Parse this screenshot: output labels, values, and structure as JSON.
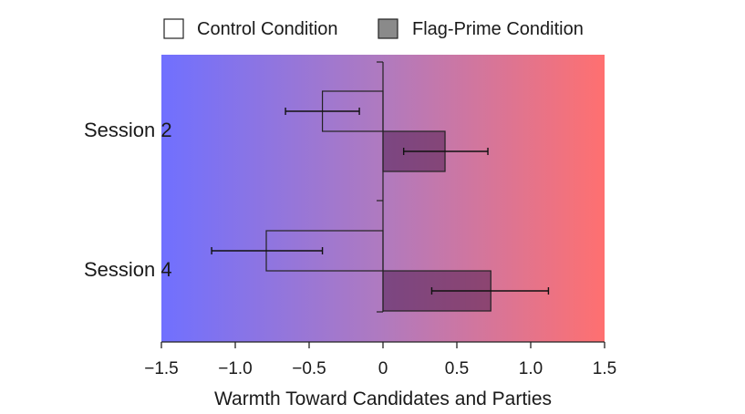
{
  "chart_data": {
    "type": "bar",
    "orientation": "horizontal",
    "categories": [
      "Session 2",
      "Session 4"
    ],
    "series": [
      {
        "name": "Control Condition",
        "values": [
          -0.41,
          -0.79
        ],
        "error_low": [
          -0.66,
          -1.16
        ],
        "error_high": [
          -0.16,
          -0.41
        ],
        "fill": "#ffffff"
      },
      {
        "name": "Flag-Prime Condition",
        "values": [
          0.42,
          0.73
        ],
        "error_low": [
          0.14,
          0.33
        ],
        "error_high": [
          0.71,
          1.12
        ],
        "fill": "#8a8a8a"
      }
    ],
    "xlabel": "Warmth Toward Candidates and Parties",
    "xlim": [
      -1.5,
      1.5
    ],
    "xticks": [
      -1.5,
      -1.0,
      -0.5,
      0,
      0.5,
      1.0,
      1.5
    ],
    "xtick_labels": [
      "−1.5",
      "−1.0",
      "−0.5",
      "0",
      "0.5",
      "1.0",
      "1.5"
    ],
    "legend_position": "top",
    "background_gradient": {
      "left": "#7070ff",
      "center": "#b07abf",
      "right": "#ff7070"
    },
    "grid": false
  }
}
